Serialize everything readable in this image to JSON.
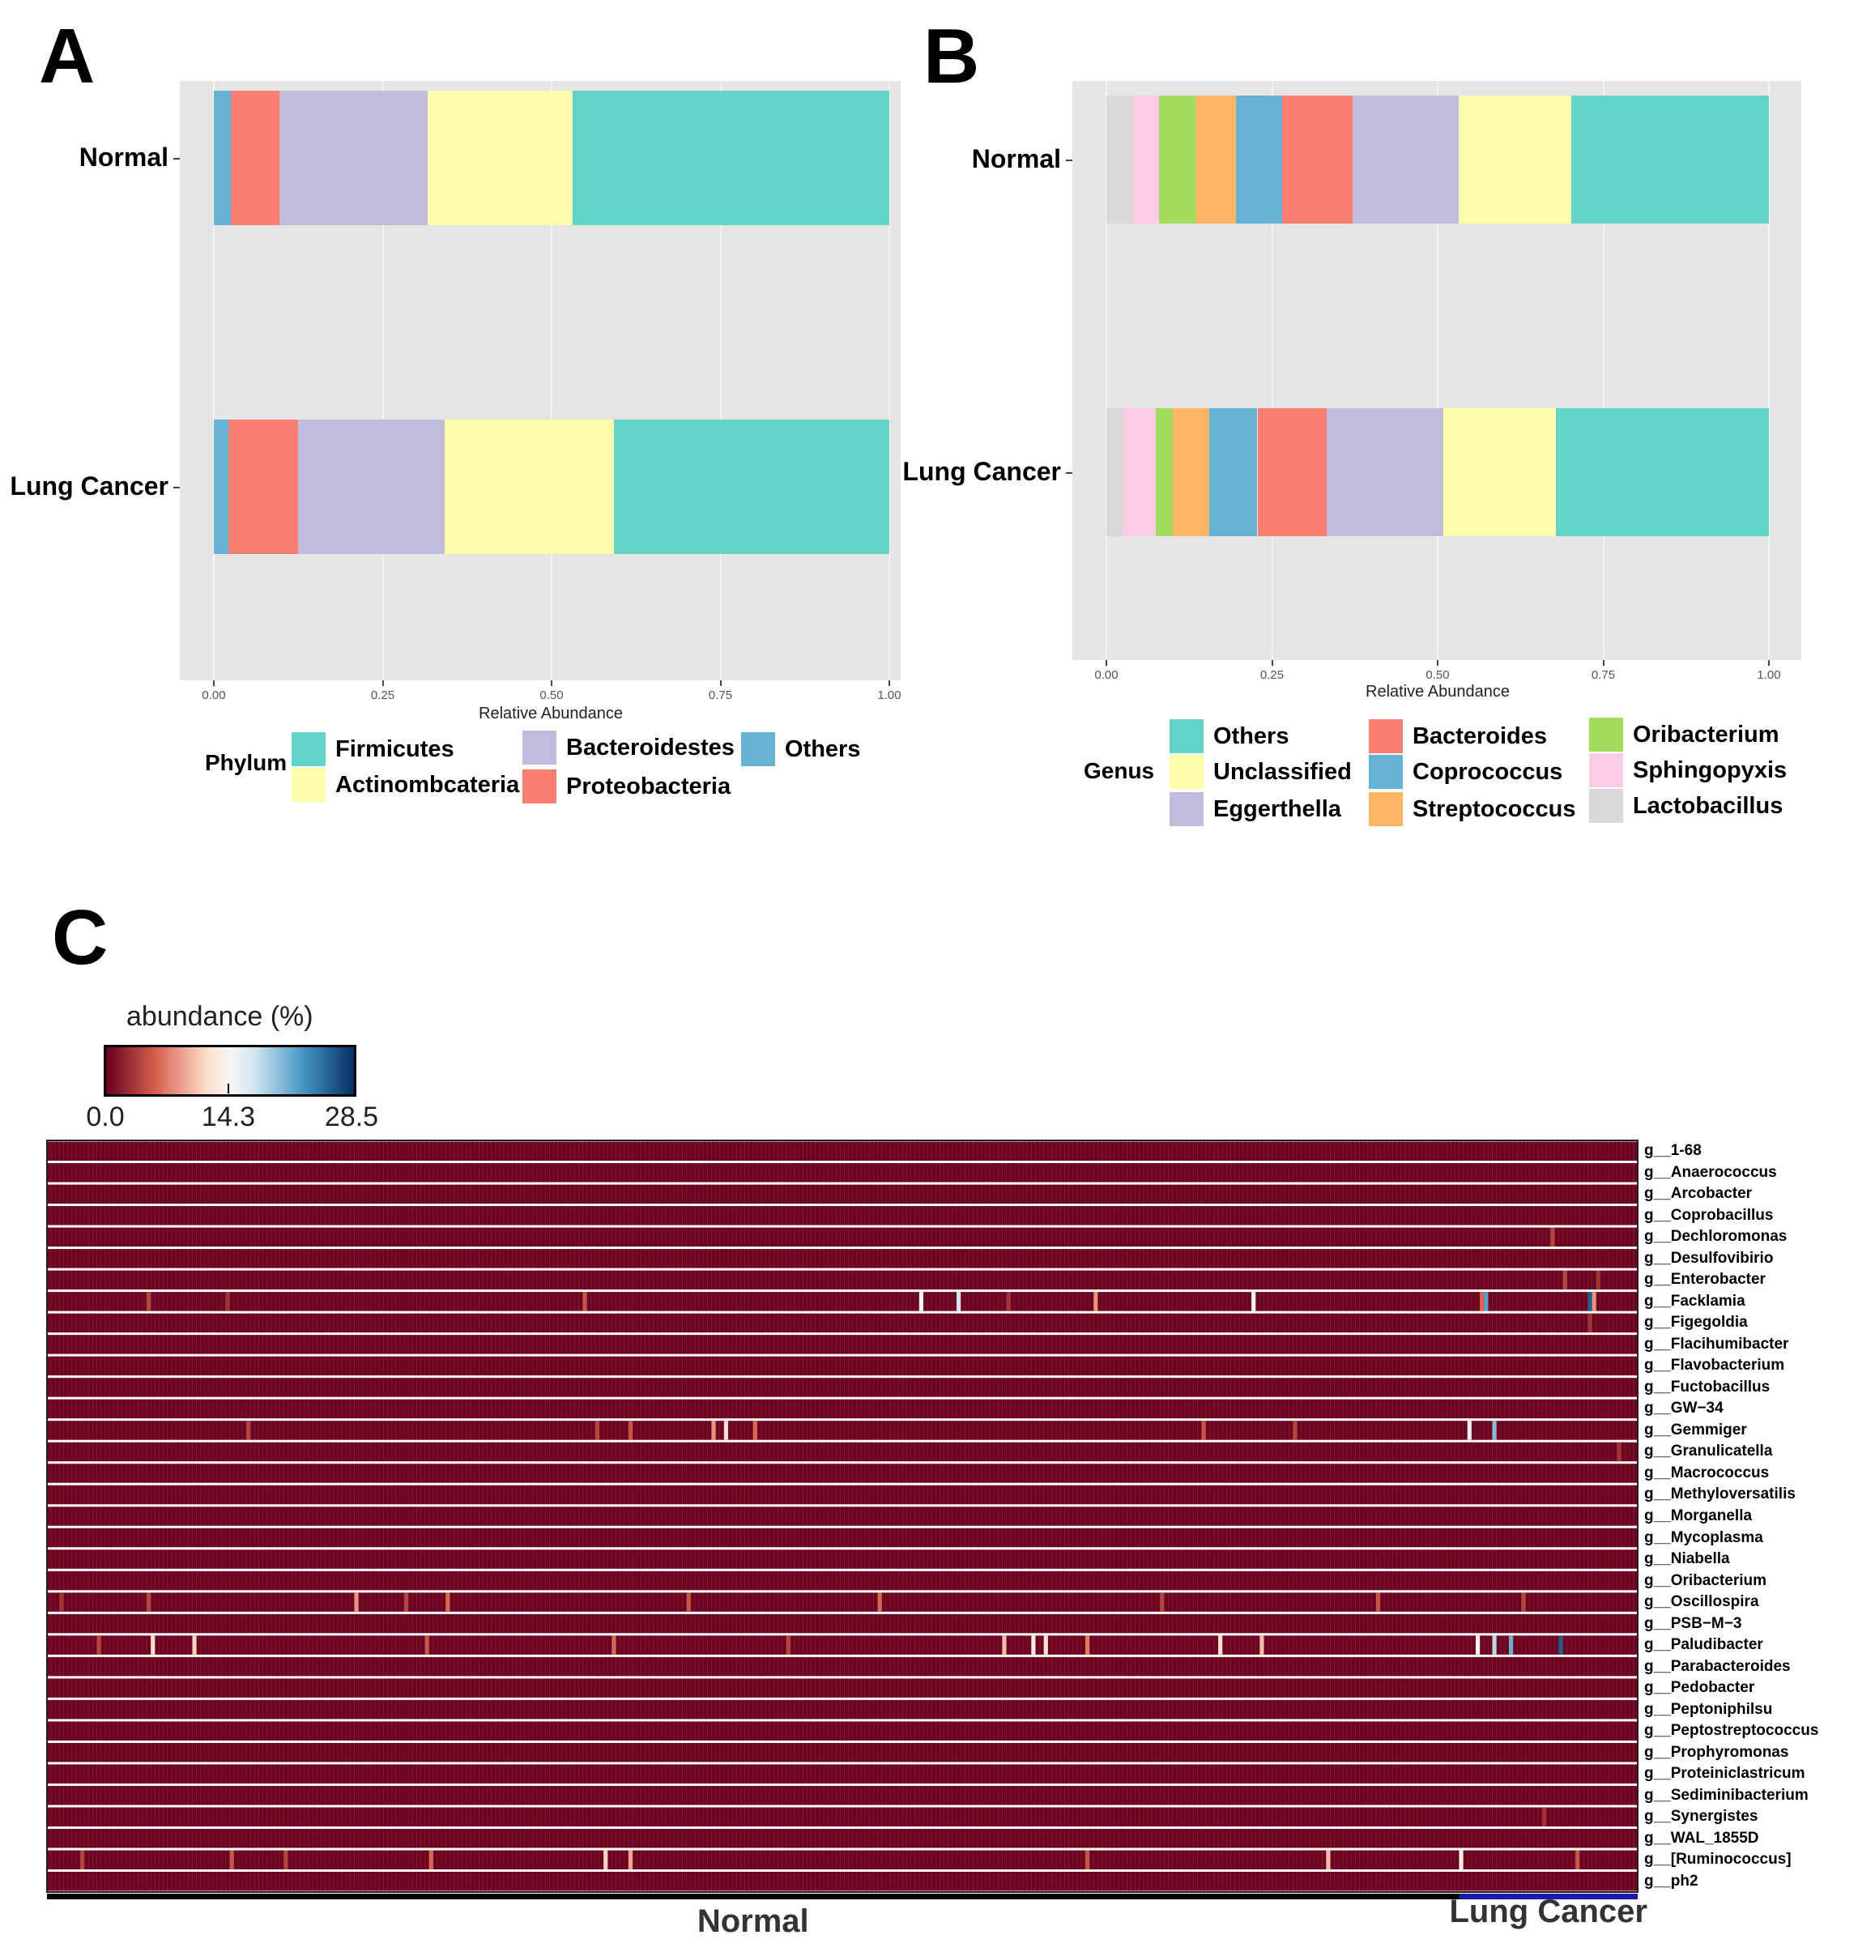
{
  "panels": {
    "a": "A",
    "b": "B",
    "c": "C"
  },
  "chart_data": [
    {
      "type": "bar",
      "orientation": "horizontal",
      "stacked": true,
      "panel": "A",
      "categories": [
        "Normal",
        "Lung Cancer"
      ],
      "series": [
        {
          "name": "Others",
          "color": "#67b3d5",
          "values": [
            0.025,
            0.022
          ]
        },
        {
          "name": "Proteobacteria",
          "color": "#fa7f72",
          "values": [
            0.072,
            0.103
          ]
        },
        {
          "name": "Bacteroidestes",
          "color": "#c2bcdc",
          "values": [
            0.22,
            0.217
          ]
        },
        {
          "name": "Actinombcateria",
          "color": "#fdfdac",
          "values": [
            0.214,
            0.25
          ]
        },
        {
          "name": "Firmicutes",
          "color": "#62d5c8",
          "values": [
            0.469,
            0.408
          ]
        }
      ],
      "xticks": [
        "0.00",
        "0.25",
        "0.50",
        "0.75",
        "1.00"
      ],
      "xlim": [
        0,
        1
      ],
      "xlabel": "Relative Abundance",
      "legend_title": "Phylum",
      "legend_order": [
        "Firmicutes",
        "Actinombcateria",
        "Bacteroidestes",
        "Proteobacteria",
        "Others"
      ],
      "legend_position": "bottom"
    },
    {
      "type": "bar",
      "orientation": "horizontal",
      "stacked": true,
      "panel": "B",
      "categories": [
        "Normal",
        "Lung Cancer"
      ],
      "series": [
        {
          "name": "Lactobacillus",
          "color": "#d9d9d9",
          "values": [
            0.04,
            0.025
          ]
        },
        {
          "name": "Sphingopyxis",
          "color": "#fbcce4",
          "values": [
            0.04,
            0.05
          ]
        },
        {
          "name": "Oribacterium",
          "color": "#a2dc5e",
          "values": [
            0.055,
            0.025
          ]
        },
        {
          "name": "Streptococcus",
          "color": "#fdb566",
          "values": [
            0.06,
            0.055
          ]
        },
        {
          "name": "Coprococcus",
          "color": "#67b3d5",
          "values": [
            0.07,
            0.073
          ]
        },
        {
          "name": "Bacteroides",
          "color": "#fa7f72",
          "values": [
            0.107,
            0.105
          ]
        },
        {
          "name": "Eggerthella",
          "color": "#c2bcdc",
          "values": [
            0.16,
            0.175
          ]
        },
        {
          "name": "Unclassified",
          "color": "#fdfdac",
          "values": [
            0.17,
            0.17
          ]
        },
        {
          "name": "Others",
          "color": "#62d5c8",
          "values": [
            0.298,
            0.322
          ]
        }
      ],
      "xticks": [
        "0.00",
        "0.25",
        "0.50",
        "0.75",
        "1.00"
      ],
      "xlim": [
        0,
        1
      ],
      "xlabel": "Relative Abundance",
      "legend_title": "Genus",
      "legend_order": [
        "Others",
        "Unclassified",
        "Eggerthella",
        "Bacteroides",
        "Coprococcus",
        "Streptococcus",
        "Oribacterium",
        "Sphingopyxis",
        "Lactobacillus"
      ],
      "legend_position": "bottom"
    },
    {
      "type": "heatmap",
      "panel": "C",
      "colorbar_title": "abundance (%)",
      "colorbar_ticks": [
        "0.0",
        "14.3",
        "28.5"
      ],
      "value_range": [
        0,
        28.5
      ],
      "n_samples": 383,
      "groups": [
        {
          "name": "Normal",
          "n": 340,
          "color": "#000000"
        },
        {
          "name": "Lung Cancer",
          "n": 43,
          "color": "#1a1aa8"
        }
      ],
      "rows": [
        "g__1-68",
        "g__Anaerococcus",
        "g__Arcobacter",
        "g__Coprobacillus",
        "g__Dechloromonas",
        "g__Desulfovibirio",
        "g__Enterobacter",
        "g__Facklamia",
        "g__Figegoldia",
        "g__Flacihumibacter",
        "g__Flavobacterium",
        "g__Fuctobacillus",
        "g__GW−34",
        "g__Gemmiger",
        "g__Granulicatella",
        "g__Macrococcus",
        "g__Methyloversatilis",
        "g__Morganella",
        "g__Mycoplasma",
        "g__Niabella",
        "g__Oribacterium",
        "g__Oscillospira",
        "g__PSB−M−3",
        "g__Paludibacter",
        "g__Parabacteroides",
        "g__Pedobacter",
        "g__Peptoniphilsu",
        "g__Peptostreptococcus",
        "g__Prophyromonas",
        "g__Proteiniclastricum",
        "g__Sediminibacterium",
        "g__Synergistes",
        "g__WAL_1855D",
        "g__[Ruminococcus]",
        "g__ph2"
      ],
      "baseline_value": 0.3,
      "highlights": [
        {
          "row": "g__Facklamia",
          "cells": [
            [
              24,
              4
            ],
            [
              43,
              3
            ],
            [
              129,
              5
            ],
            [
              210,
              14
            ],
            [
              219,
              17
            ],
            [
              231,
              3
            ],
            [
              252,
              8
            ],
            [
              290,
              15
            ],
            [
              345,
              6
            ],
            [
              346,
              22
            ],
            [
              372,
              8
            ],
            [
              371,
              26
            ]
          ]
        },
        {
          "row": "g__Gemmiger",
          "cells": [
            [
              48,
              4
            ],
            [
              132,
              4
            ],
            [
              140,
              5
            ],
            [
              160,
              8
            ],
            [
              163,
              12
            ],
            [
              170,
              6
            ],
            [
              278,
              5
            ],
            [
              300,
              4
            ],
            [
              342,
              15
            ],
            [
              348,
              20
            ]
          ]
        },
        {
          "row": "g__Oscillospira",
          "cells": [
            [
              3,
              3
            ],
            [
              24,
              4
            ],
            [
              74,
              8
            ],
            [
              86,
              4
            ],
            [
              96,
              6
            ],
            [
              154,
              5
            ],
            [
              200,
              6
            ],
            [
              268,
              4
            ],
            [
              320,
              5
            ],
            [
              355,
              4
            ]
          ]
        },
        {
          "row": "g__Paludibacter",
          "cells": [
            [
              12,
              4
            ],
            [
              25,
              12
            ],
            [
              35,
              11
            ],
            [
              91,
              5
            ],
            [
              136,
              6
            ],
            [
              178,
              4
            ],
            [
              240,
              12
            ],
            [
              250,
              7
            ],
            [
              230,
              10
            ],
            [
              237,
              13
            ],
            [
              282,
              12
            ],
            [
              292,
              10
            ],
            [
              344,
              14
            ],
            [
              348,
              18
            ],
            [
              352,
              21
            ],
            [
              364,
              26
            ]
          ]
        },
        {
          "row": "g__[Ruminococcus]",
          "cells": [
            [
              8,
              4
            ],
            [
              44,
              5
            ],
            [
              57,
              4
            ],
            [
              92,
              6
            ],
            [
              134,
              11
            ],
            [
              140,
              9
            ],
            [
              250,
              5
            ],
            [
              308,
              10
            ],
            [
              340,
              13
            ],
            [
              368,
              5
            ]
          ]
        },
        {
          "row": "g__Enterobacter",
          "cells": [
            [
              365,
              4
            ],
            [
              373,
              3
            ]
          ]
        },
        {
          "row": "g__Dechloromonas",
          "cells": [
            [
              362,
              4
            ]
          ]
        },
        {
          "row": "g__Figegoldia",
          "cells": [
            [
              371,
              3
            ]
          ]
        },
        {
          "row": "g__Granulicatella",
          "cells": [
            [
              378,
              3
            ]
          ]
        },
        {
          "row": "g__Synergistes",
          "cells": [
            [
              360,
              3
            ]
          ]
        }
      ]
    }
  ]
}
